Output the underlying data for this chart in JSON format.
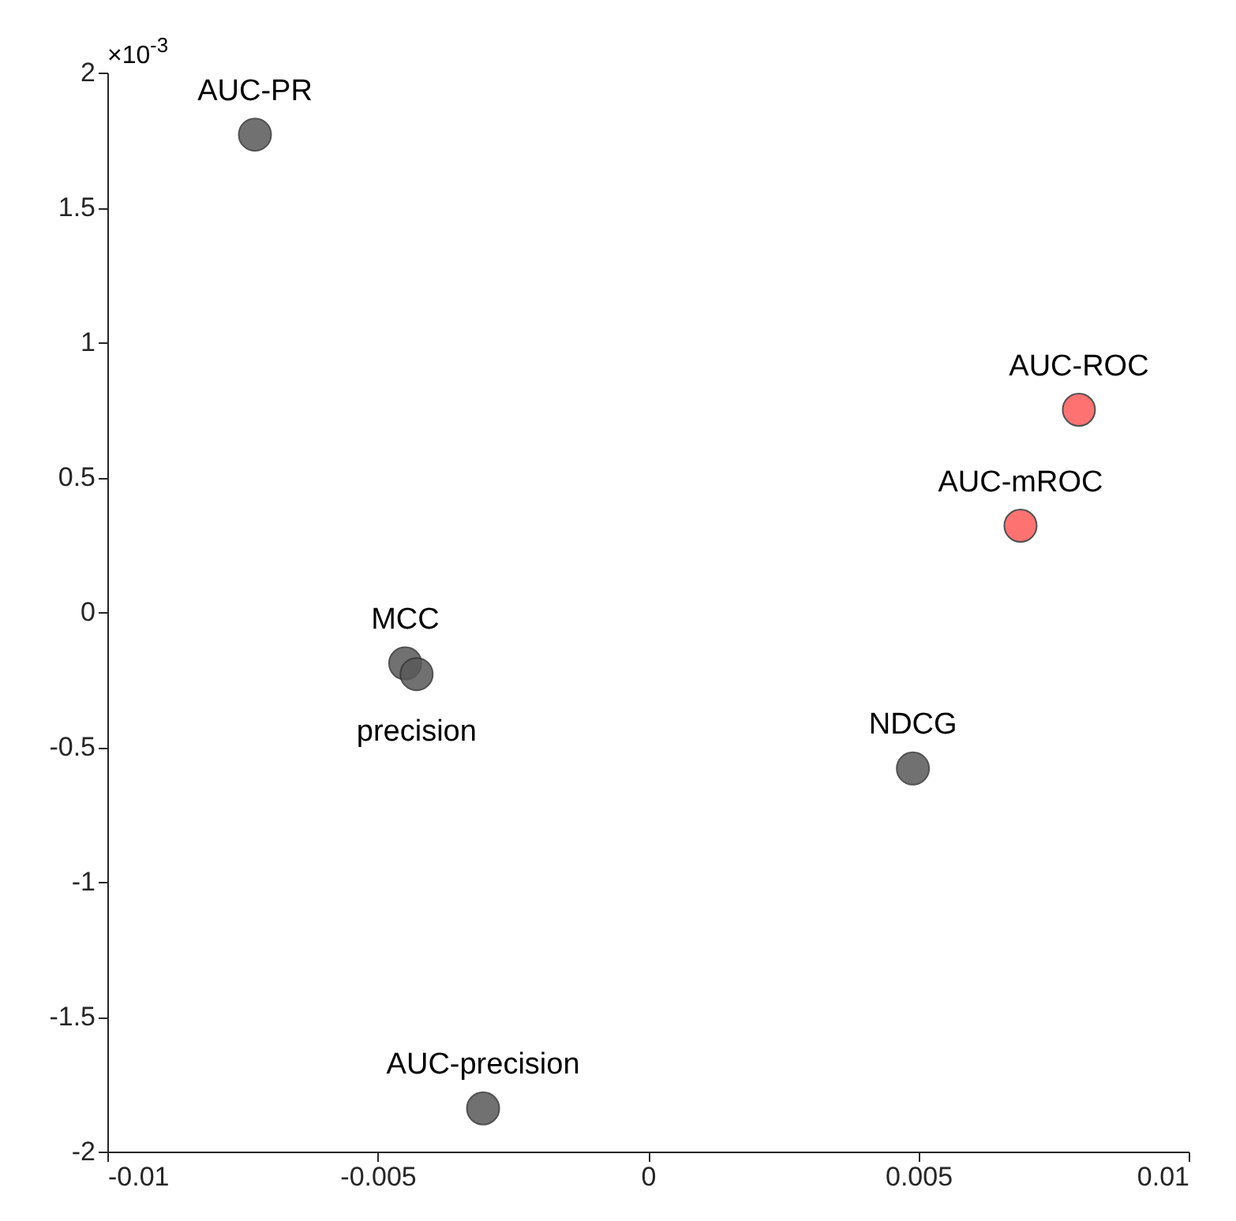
{
  "chart_data": {
    "type": "scatter",
    "marker": "circle",
    "grid": false,
    "xlim": [
      -0.01,
      0.01
    ],
    "xticks": [
      -0.01,
      -0.005,
      0,
      0.005,
      0.01
    ],
    "ylim": [
      -2,
      2
    ],
    "yticks": [
      -2,
      -1.5,
      -1,
      -0.5,
      0,
      0.5,
      1,
      1.5,
      2
    ],
    "annotations": [
      "×10$^{-3}$"
    ],
    "series": [
      {
        "name": "AUC-PR",
        "color": "#595959",
        "x": [
          -0.00727
        ],
        "values": [
          1.77
        ]
      },
      {
        "name": "AUC-ROC",
        "color": "#ff5a5a",
        "x": [
          0.00797
        ],
        "values": [
          0.75
        ]
      },
      {
        "name": "AUC-mROC",
        "color": "#ff5a5a",
        "x": [
          0.00689
        ],
        "values": [
          0.32
        ]
      },
      {
        "name": "MCC",
        "color": "#595959",
        "x": [
          -0.00449
        ],
        "values": [
          -0.19
        ]
      },
      {
        "name": "precision",
        "color": "#595959",
        "x": [
          -0.00428
        ],
        "values": [
          -0.23
        ]
      },
      {
        "name": "NDCG",
        "color": "#595959",
        "x": [
          0.0049
        ],
        "values": [
          -0.58
        ]
      },
      {
        "name": "AUC-precision",
        "color": "#595959",
        "x": [
          -0.00305
        ],
        "values": [
          -1.84
        ]
      }
    ]
  }
}
